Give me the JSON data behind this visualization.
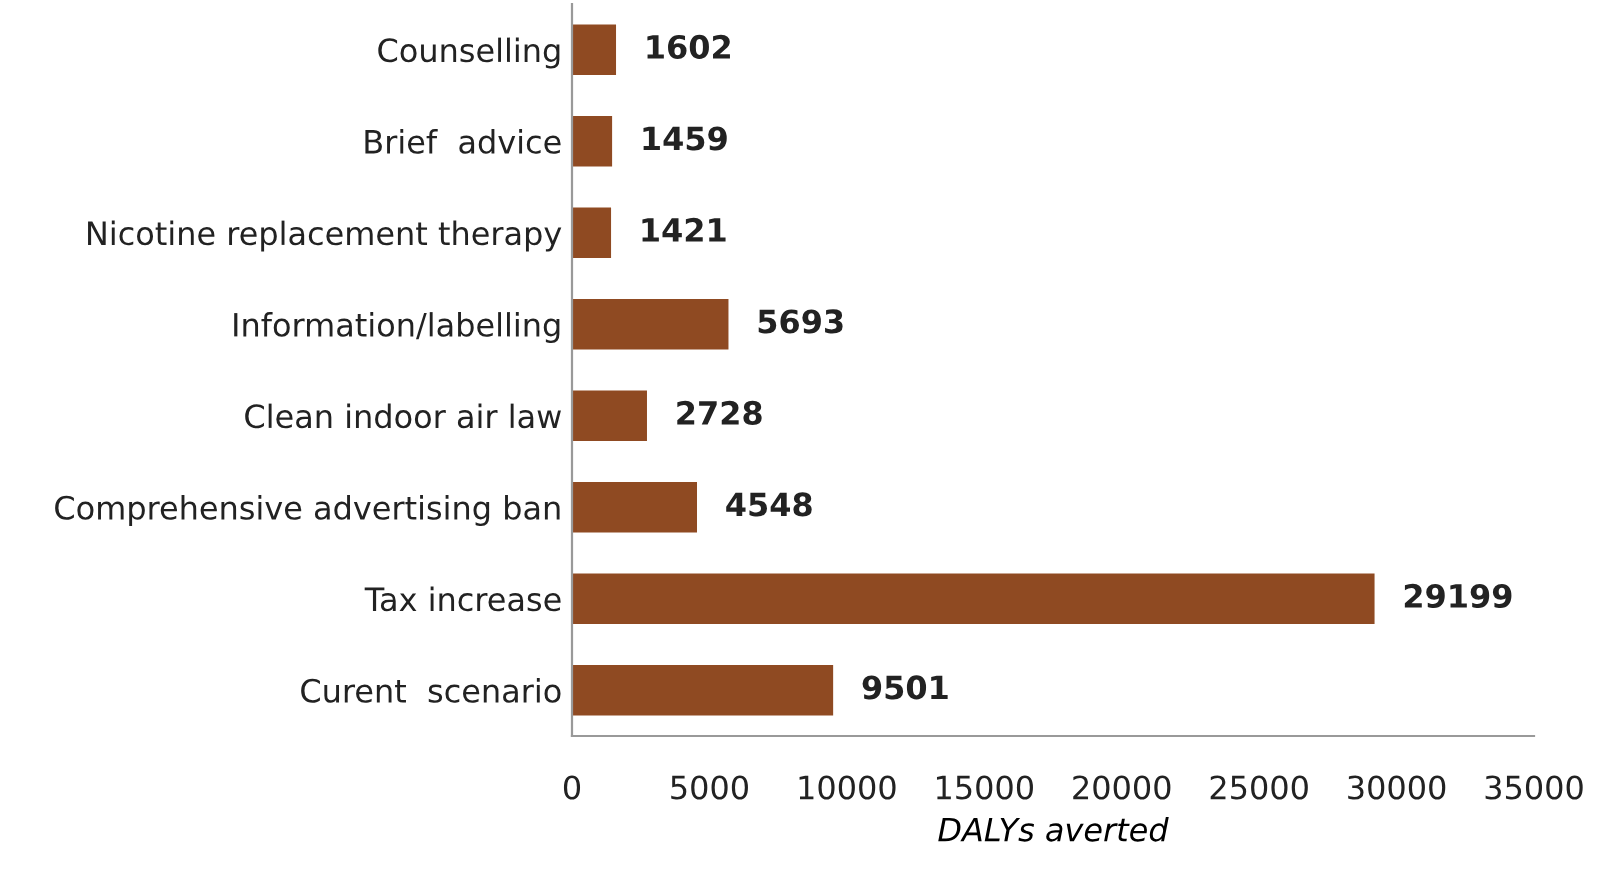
{
  "chart_data": {
    "type": "bar",
    "orientation": "horizontal",
    "xlabel": "DALYs averted",
    "categories": [
      "Counselling",
      "Brief  advice",
      "Nicotine replacement therapy",
      "Information/labelling",
      "Clean indoor air law",
      "Comprehensive advertising ban",
      "Tax increase",
      "Curent  scenario"
    ],
    "values": [
      1602,
      1459,
      1421,
      5693,
      2728,
      4548,
      29199,
      9501
    ],
    "color": "#8f4a22",
    "xlim": [
      0,
      35000
    ],
    "xticks": [
      0,
      5000,
      10000,
      15000,
      20000,
      25000,
      30000,
      35000
    ],
    "data_labels": true,
    "grid": false,
    "legend": false
  }
}
